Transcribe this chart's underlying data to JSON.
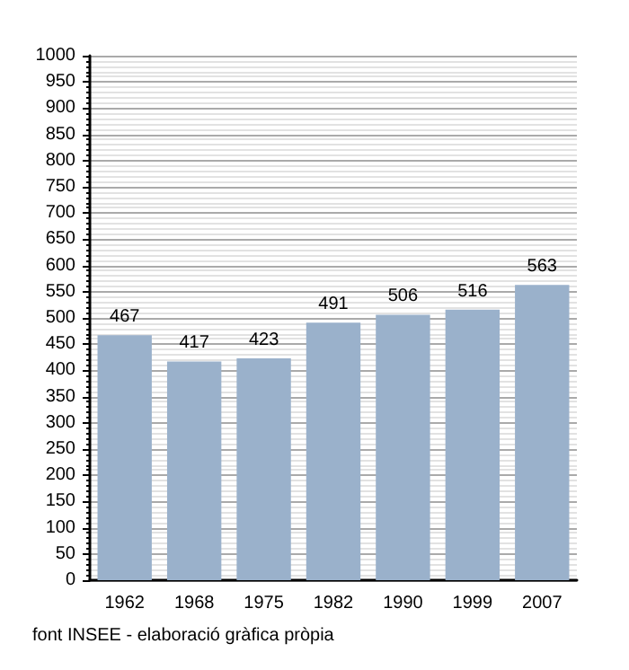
{
  "chart_data": {
    "type": "bar",
    "categories": [
      "1962",
      "1968",
      "1975",
      "1982",
      "1990",
      "1999",
      "2007"
    ],
    "values": [
      467,
      417,
      423,
      491,
      506,
      516,
      563
    ],
    "color": "#9ab1cb",
    "ylim": [
      0,
      1000
    ],
    "yticks": [
      0,
      50,
      100,
      150,
      200,
      250,
      300,
      350,
      400,
      450,
      500,
      550,
      600,
      650,
      700,
      750,
      800,
      850,
      900,
      950,
      1000
    ],
    "grid": "y",
    "data_labels": true,
    "annotations": [
      "font INSEE - elaboració gràfica pròpia"
    ]
  }
}
